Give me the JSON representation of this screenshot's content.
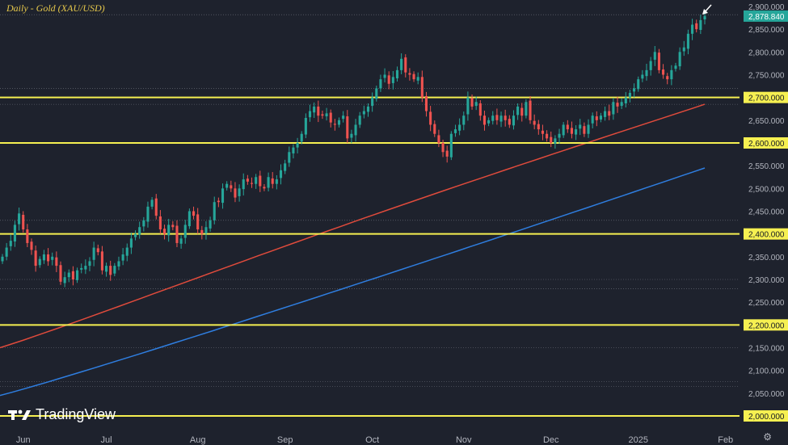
{
  "title": "Daily - Gold (XAU/USD)",
  "logo_text": "TradingView",
  "current_price_label": "2,878.840",
  "colors": {
    "background": "#1e222d",
    "bull": "#26a69a",
    "bear": "#ef5350",
    "level": "#f6f051",
    "ma_red": "#e04b3c",
    "ma_blue": "#2f7ee0",
    "price_badge": "#26a69a"
  },
  "icons": {
    "settings": "gear-icon",
    "logo": "tradingview-logo-icon",
    "arrow": "pointer-arrow-icon"
  },
  "chart_data": {
    "type": "candlestick",
    "title": "Daily - Gold (XAU/USD)",
    "ylim": [
      1970,
      2920
    ],
    "y_ticks": [
      "2,900.000",
      "2,850.000",
      "2,800.000",
      "2,750.000",
      "2,700.000",
      "2,650.000",
      "2,600.000",
      "2,550.000",
      "2,500.000",
      "2,450.000",
      "2,400.000",
      "2,350.000",
      "2,300.000",
      "2,250.000",
      "2,200.000",
      "2,150.000",
      "2,100.000",
      "2,050.000",
      "2,000.000"
    ],
    "x_labels": [
      "Jun",
      "Jul",
      "Aug",
      "Sep",
      "Oct",
      "Nov",
      "Dec",
      "2025",
      "Feb"
    ],
    "x_label_positions_day_index": [
      5,
      25,
      47,
      68,
      89,
      111,
      132,
      153,
      174
    ],
    "horizontal_levels": [
      {
        "value": 2700,
        "label": "2,700.000"
      },
      {
        "value": 2600,
        "label": "2,600.000"
      },
      {
        "value": 2400,
        "label": "2,400.000"
      },
      {
        "value": 2200,
        "label": "2,200.000"
      },
      {
        "value": 2000,
        "label": "2,000.000"
      }
    ],
    "dotted_levels": [
      2882,
      2720,
      2685,
      2430,
      2300,
      2280,
      2150,
      2075,
      2065
    ],
    "closes": [
      2350,
      2370,
      2385,
      2420,
      2445,
      2410,
      2380,
      2365,
      2330,
      2345,
      2355,
      2340,
      2350,
      2330,
      2295,
      2305,
      2315,
      2300,
      2320,
      2325,
      2330,
      2340,
      2370,
      2360,
      2320,
      2330,
      2310,
      2330,
      2340,
      2355,
      2370,
      2390,
      2400,
      2415,
      2430,
      2460,
      2475,
      2440,
      2410,
      2400,
      2420,
      2415,
      2380,
      2390,
      2420,
      2450,
      2440,
      2410,
      2400,
      2415,
      2430,
      2470,
      2470,
      2500,
      2510,
      2500,
      2480,
      2500,
      2520,
      2515,
      2510,
      2525,
      2505,
      2500,
      2525,
      2510,
      2520,
      2540,
      2555,
      2580,
      2590,
      2600,
      2620,
      2655,
      2670,
      2680,
      2660,
      2660,
      2665,
      2645,
      2640,
      2650,
      2660,
      2610,
      2620,
      2640,
      2660,
      2670,
      2680,
      2700,
      2720,
      2740,
      2750,
      2730,
      2745,
      2760,
      2785,
      2755,
      2750,
      2740,
      2745,
      2700,
      2670,
      2640,
      2620,
      2600,
      2580,
      2570,
      2620,
      2630,
      2640,
      2660,
      2700,
      2680,
      2690,
      2660,
      2640,
      2650,
      2660,
      2650,
      2660,
      2650,
      2640,
      2660,
      2680,
      2660,
      2690,
      2650,
      2640,
      2630,
      2620,
      2610,
      2600,
      2610,
      2620,
      2640,
      2630,
      2620,
      2630,
      2640,
      2620,
      2640,
      2660,
      2650,
      2660,
      2670,
      2660,
      2690,
      2680,
      2690,
      2700,
      2710,
      2720,
      2740,
      2750,
      2760,
      2780,
      2800,
      2760,
      2750,
      2740,
      2760,
      2770,
      2800,
      2810,
      2840,
      2860,
      2850,
      2870,
      2879
    ],
    "moving_averages": [
      {
        "color_key": "ma_red",
        "start": 2150,
        "end": 2685
      },
      {
        "color_key": "ma_blue",
        "start": 2045,
        "end": 2545
      }
    ]
  }
}
